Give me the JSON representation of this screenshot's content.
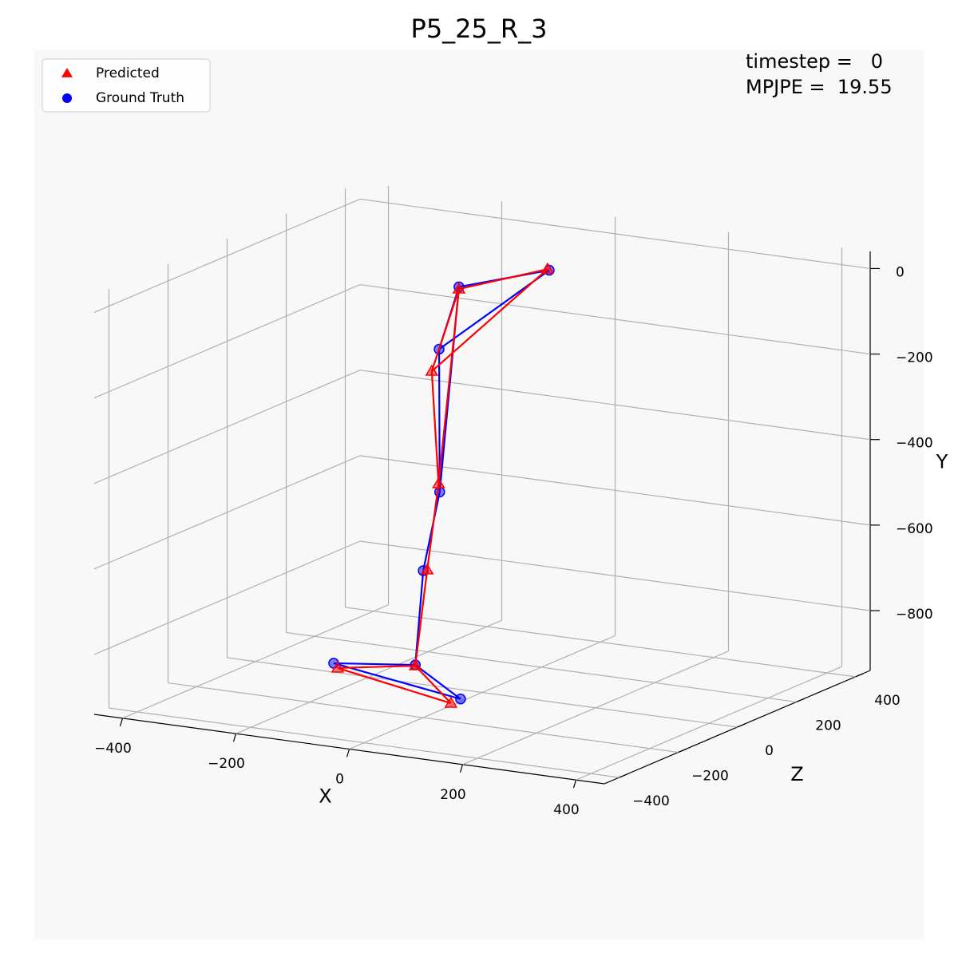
{
  "chart_data": {
    "type": "scatter3d",
    "title": "P5_25_R_3",
    "annotations": [
      "timestep =   0",
      "MPJPE =  19.55"
    ],
    "xlabel": "X",
    "ylabel": "Y",
    "zlabel": "Z",
    "xlim": [
      -450,
      450
    ],
    "ylim": [
      -940,
      40
    ],
    "zlim": [
      -450,
      450
    ],
    "xticks": [
      {
        "value": -400,
        "label": "−400"
      },
      {
        "value": -200,
        "label": "−200"
      },
      0,
      200,
      400
    ],
    "yticks": [
      0,
      {
        "value": -200,
        "label": "−200"
      },
      {
        "value": -400,
        "label": "−400"
      },
      {
        "value": -600,
        "label": "−600"
      },
      {
        "value": -800,
        "label": "−800"
      }
    ],
    "zticks": [
      {
        "value": -400,
        "label": "−400"
      },
      {
        "value": -200,
        "label": "−200"
      },
      0,
      200,
      400
    ],
    "grid": true,
    "legend": "upper left",
    "series": [
      {
        "name": "Predicted",
        "color": "#ff0000",
        "marker": "triangle",
        "x": [
          11,
          -41,
          -89,
          -77,
          -97,
          -118,
          -255,
          23
        ],
        "y": [
          -7,
          -4,
          -205,
          -466,
          -671,
          -899,
          -929,
          -917
        ],
        "z": [
          200,
          0,
          0,
          0,
          0,
          0,
          0,
          -150
        ]
      },
      {
        "name": "Ground Truth",
        "color": "#0000ff",
        "marker": "circle",
        "x": [
          14,
          -41,
          -76,
          -75,
          -104,
          -118,
          -262,
          40
        ],
        "y": [
          -9,
          1,
          -151,
          -485,
          -674,
          -897,
          -919,
          -904
        ],
        "z": [
          200,
          0,
          0,
          0,
          0,
          0,
          0,
          -150
        ]
      }
    ]
  }
}
